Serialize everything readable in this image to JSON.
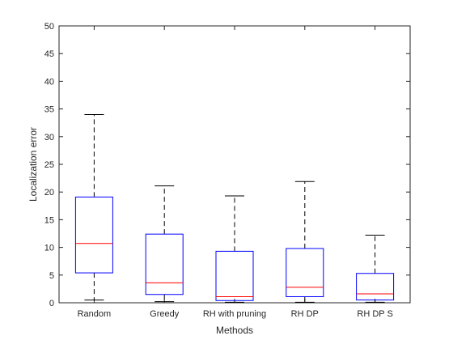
{
  "chart_data": {
    "type": "boxplot",
    "xlabel": "Methods",
    "ylabel": "Localization error",
    "ylim": [
      0,
      50
    ],
    "yticks": [
      0,
      5,
      10,
      15,
      20,
      25,
      30,
      35,
      40,
      45,
      50
    ],
    "grid": false,
    "categories": [
      "Random",
      "Greedy",
      "RH with pruning",
      "RH DP",
      "RH DP S"
    ],
    "boxes": [
      {
        "min": 0.5,
        "q1": 5.4,
        "median": 10.7,
        "q3": 19.1,
        "max": 34.0
      },
      {
        "min": 0.2,
        "q1": 1.5,
        "median": 3.6,
        "q3": 12.4,
        "max": 21.1
      },
      {
        "min": 0.1,
        "q1": 0.4,
        "median": 1.1,
        "q3": 9.3,
        "max": 19.3
      },
      {
        "min": 0.1,
        "q1": 1.1,
        "median": 2.8,
        "q3": 9.8,
        "max": 21.9
      },
      {
        "min": 0.1,
        "q1": 0.5,
        "median": 1.6,
        "q3": 5.3,
        "max": 12.2
      }
    ],
    "colors": {
      "box": "#0000ff",
      "median": "#ff0000",
      "whisker": "#000000",
      "axis": "#262626"
    }
  }
}
